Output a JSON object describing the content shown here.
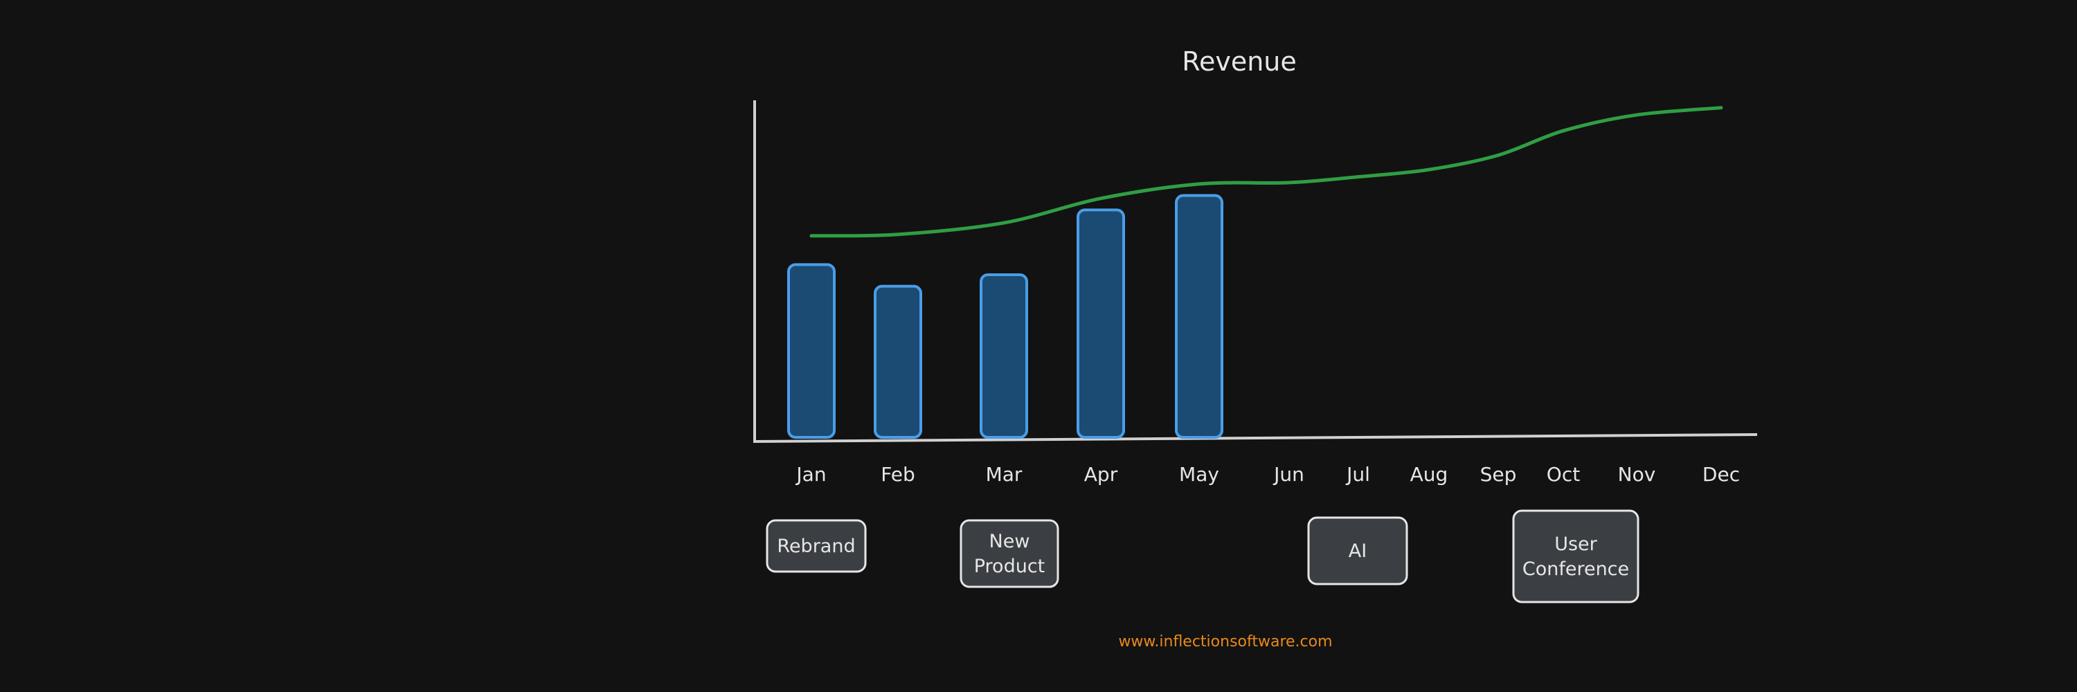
{
  "chart_data": {
    "type": "bar",
    "title": "Revenue",
    "categories": [
      "Jan",
      "Feb",
      "Mar",
      "Apr",
      "May",
      "Jun",
      "Jul",
      "Aug",
      "Sep",
      "Oct",
      "Nov",
      "Dec"
    ],
    "series": [
      {
        "type": "bar",
        "values": [
          120,
          105,
          113,
          158,
          168,
          null,
          null,
          null,
          null,
          null,
          null,
          null
        ]
      },
      {
        "type": "line",
        "values": [
          140,
          141,
          149,
          166,
          176,
          177,
          181,
          186,
          196,
          213,
          224,
          229
        ]
      }
    ],
    "ylim": [
      0,
      250
    ],
    "grid": false,
    "legend": "none",
    "annotations": [
      {
        "category": "Jan",
        "lines": [
          "Rebrand"
        ]
      },
      {
        "category": "Mar",
        "lines": [
          "New",
          "Product"
        ]
      },
      {
        "category": "Jul",
        "lines": [
          "AI"
        ]
      },
      {
        "category": "Oct",
        "lines": [
          "User",
          "Conference"
        ]
      }
    ]
  },
  "footer": "www.inflectionsoftware.com",
  "colors": {
    "background": "#121212",
    "bar_fill": "#1b4a73",
    "bar_stroke": "#4a9ee8",
    "line": "#2f9e44",
    "axis": "#d0d0d0",
    "text": "#e6e6e6",
    "event_fill": "#3b3f43",
    "event_stroke": "#e6e6e6",
    "footer": "#e8891c"
  }
}
